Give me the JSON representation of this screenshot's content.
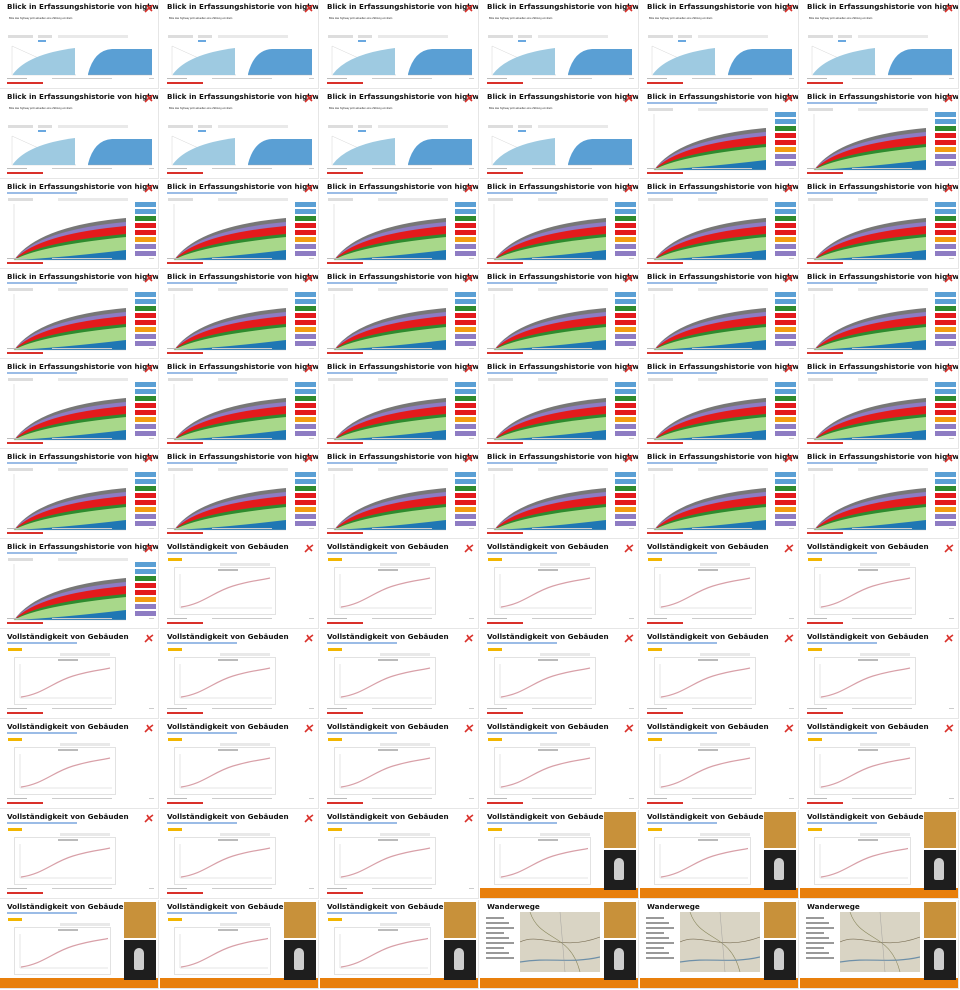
{
  "sheet": {
    "title_history": "Blick in Erfassungshistorie von highway=*",
    "title_buildings": "Vollständigkeit von Gebäuden",
    "title_hiking": "Wanderwege",
    "notice_text": "Bitte das highway jetzt aktuellen eine Zählung ermitteln",
    "rows": [
      [
        "history-blue",
        "history-blue",
        "history-blue",
        "history-blue",
        "history-blue",
        "history-blue"
      ],
      [
        "history-blue",
        "history-blue",
        "history-blue",
        "history-blue",
        "history-stack",
        "history-stack"
      ],
      [
        "history-stack",
        "history-stack",
        "history-stack",
        "history-stack",
        "history-stack",
        "history-stack"
      ],
      [
        "history-stack",
        "history-stack",
        "history-stack",
        "history-stack",
        "history-stack",
        "history-stack"
      ],
      [
        "history-stack",
        "history-stack",
        "history-stack",
        "history-stack",
        "history-stack",
        "history-stack"
      ],
      [
        "history-stack",
        "history-stack",
        "history-stack",
        "history-stack",
        "history-stack",
        "history-stack"
      ],
      [
        "history-stack",
        "buildings",
        "buildings",
        "buildings",
        "buildings",
        "buildings"
      ],
      [
        "buildings",
        "buildings",
        "buildings",
        "buildings",
        "buildings",
        "buildings"
      ],
      [
        "buildings",
        "buildings",
        "buildings",
        "buildings",
        "buildings",
        "buildings"
      ],
      [
        "buildings",
        "buildings",
        "buildings",
        "buildings-video",
        "buildings-video",
        "buildings-video"
      ],
      [
        "buildings-video",
        "buildings-video",
        "buildings-video",
        "hiking-video",
        "hiking-video",
        "hiking-video"
      ]
    ],
    "colors": {
      "accent_red": "#d9302a",
      "area_light_blue": "#9ecae1",
      "area_blue": "#5a9fd4",
      "stack_green": "#a8d88a",
      "stack_dark_green": "#2e8b2e",
      "stack_red": "#e31a1c",
      "stack_purple": "#8e7cc3",
      "stack_gray": "#777777",
      "stack_blue": "#1f77b4",
      "orange_band": "#e87f0c",
      "curve": "#d8a0a8"
    }
  }
}
